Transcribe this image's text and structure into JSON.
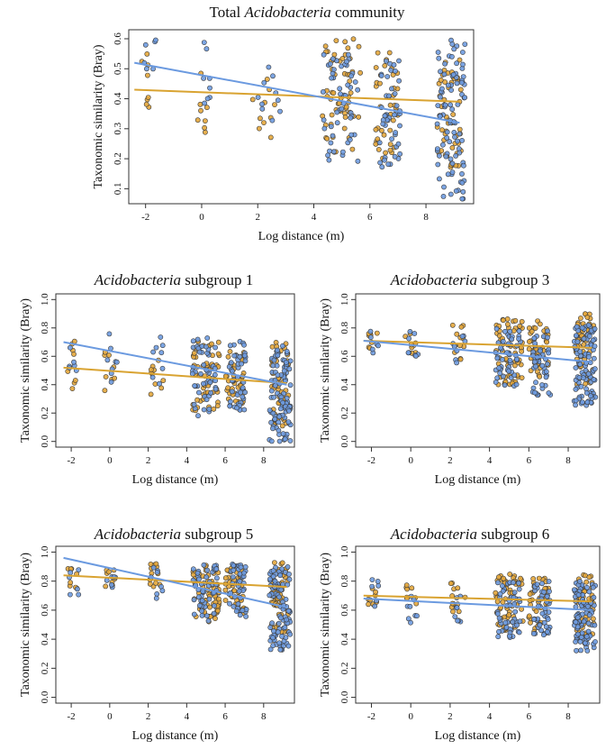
{
  "colors": {
    "orange": "#e3a63b",
    "blue": "#6e9be0",
    "orange_line": "#d9a331",
    "blue_line": "#6b9ae0",
    "point_edge": "#3a3a3a"
  },
  "chart_data": [
    {
      "type": "scatter",
      "title_italic": "Acidobacteria",
      "title_plain": "Total",
      "title_suffix": " community",
      "title_order": "plain-first",
      "xlabel": "Log distance (m)",
      "ylabel": "Taxonomic similarity (Bray)",
      "xlim": [
        -2.6,
        9.7
      ],
      "ylim": [
        0.05,
        0.63
      ],
      "xticks": [
        -2,
        0,
        2,
        4,
        6,
        8
      ],
      "yticks": [
        0.1,
        0.2,
        0.3,
        0.4,
        0.5,
        0.6
      ],
      "series": [
        {
          "name": "orange",
          "trend": {
            "x": [
              -2.4,
              9.2
            ],
            "y": [
              0.43,
              0.39
            ]
          },
          "clusters": [
            {
              "x": [
                -2.2,
                -1.8
              ],
              "y": [
                0.33,
                0.55
              ],
              "n": 8
            },
            {
              "x": [
                -0.2,
                0.2
              ],
              "y": [
                0.24,
                0.52
              ],
              "n": 8
            },
            {
              "x": [
                1.8,
                2.8
              ],
              "y": [
                0.27,
                0.5
              ],
              "n": 10
            },
            {
              "x": [
                4.3,
                5.7
              ],
              "y": [
                0.22,
                0.6
              ],
              "n": 55
            },
            {
              "x": [
                6.2,
                7.0
              ],
              "y": [
                0.2,
                0.56
              ],
              "n": 40
            },
            {
              "x": [
                8.4,
                9.3
              ],
              "y": [
                0.17,
                0.53
              ],
              "n": 50
            }
          ]
        },
        {
          "name": "blue",
          "trend": {
            "x": [
              -2.4,
              9.2
            ],
            "y": [
              0.52,
              0.32
            ]
          },
          "clusters": [
            {
              "x": [
                -2.1,
                -1.6
              ],
              "y": [
                0.43,
                0.62
              ],
              "n": 6
            },
            {
              "x": [
                -0.2,
                0.5
              ],
              "y": [
                0.38,
                0.6
              ],
              "n": 8
            },
            {
              "x": [
                2.0,
                2.8
              ],
              "y": [
                0.2,
                0.52
              ],
              "n": 10
            },
            {
              "x": [
                4.3,
                5.6
              ],
              "y": [
                0.18,
                0.55
              ],
              "n": 50
            },
            {
              "x": [
                6.3,
                7.1
              ],
              "y": [
                0.17,
                0.54
              ],
              "n": 45
            },
            {
              "x": [
                8.4,
                9.4
              ],
              "y": [
                0.06,
                0.6
              ],
              "n": 90
            }
          ]
        }
      ]
    },
    {
      "type": "scatter",
      "title_italic": "Acidobacteria",
      "title_plain": "",
      "title_suffix": " subgroup 1",
      "title_order": "italic-first",
      "xlabel": "Log distance (m)",
      "ylabel": "Taxonomic similarity (Bray)",
      "xlim": [
        -2.8,
        9.6
      ],
      "ylim": [
        -0.04,
        1.04
      ],
      "xticks": [
        -2,
        0,
        2,
        4,
        6,
        8
      ],
      "yticks": [
        0.0,
        0.2,
        0.4,
        0.6,
        0.8,
        1.0
      ],
      "series": [
        {
          "name": "orange",
          "trend": {
            "x": [
              -2.4,
              9.2
            ],
            "y": [
              0.52,
              0.41
            ]
          },
          "clusters": [
            {
              "x": [
                -2.2,
                -1.7
              ],
              "y": [
                0.36,
                0.75
              ],
              "n": 8
            },
            {
              "x": [
                -0.3,
                0.3
              ],
              "y": [
                0.35,
                0.7
              ],
              "n": 8
            },
            {
              "x": [
                2.0,
                2.8
              ],
              "y": [
                0.32,
                0.6
              ],
              "n": 10
            },
            {
              "x": [
                4.3,
                5.7
              ],
              "y": [
                0.2,
                0.72
              ],
              "n": 55
            },
            {
              "x": [
                6.0,
                7.0
              ],
              "y": [
                0.25,
                0.65
              ],
              "n": 40
            },
            {
              "x": [
                8.4,
                9.3
              ],
              "y": [
                0.1,
                0.7
              ],
              "n": 50
            }
          ]
        },
        {
          "name": "blue",
          "trend": {
            "x": [
              -2.4,
              9.2
            ],
            "y": [
              0.7,
              0.4
            ]
          },
          "clusters": [
            {
              "x": [
                -2.1,
                -1.6
              ],
              "y": [
                0.5,
                0.78
              ],
              "n": 6
            },
            {
              "x": [
                -0.2,
                0.4
              ],
              "y": [
                0.4,
                0.8
              ],
              "n": 8
            },
            {
              "x": [
                2.1,
                2.8
              ],
              "y": [
                0.4,
                0.75
              ],
              "n": 8
            },
            {
              "x": [
                4.3,
                5.6
              ],
              "y": [
                0.18,
                0.75
              ],
              "n": 50
            },
            {
              "x": [
                6.2,
                7.1
              ],
              "y": [
                0.22,
                0.72
              ],
              "n": 45
            },
            {
              "x": [
                8.3,
                9.4
              ],
              "y": [
                0.0,
                0.7
              ],
              "n": 95
            }
          ]
        }
      ]
    },
    {
      "type": "scatter",
      "title_italic": "Acidobacteria",
      "title_plain": "",
      "title_suffix": " subgroup 3",
      "title_order": "italic-first",
      "xlabel": "Log distance (m)",
      "ylabel": "Taxonomic similarity (Bray)",
      "xlim": [
        -2.8,
        9.6
      ],
      "ylim": [
        -0.04,
        1.04
      ],
      "xticks": [
        -2,
        0,
        2,
        4,
        6,
        8
      ],
      "yticks": [
        0.0,
        0.2,
        0.4,
        0.6,
        0.8,
        1.0
      ],
      "series": [
        {
          "name": "orange",
          "trend": {
            "x": [
              -2.4,
              9.2
            ],
            "y": [
              0.71,
              0.66
            ]
          },
          "clusters": [
            {
              "x": [
                -2.2,
                -1.7
              ],
              "y": [
                0.65,
                0.78
              ],
              "n": 8
            },
            {
              "x": [
                -0.3,
                0.3
              ],
              "y": [
                0.62,
                0.78
              ],
              "n": 8
            },
            {
              "x": [
                2.0,
                2.8
              ],
              "y": [
                0.55,
                0.82
              ],
              "n": 12
            },
            {
              "x": [
                4.3,
                5.7
              ],
              "y": [
                0.4,
                0.88
              ],
              "n": 60
            },
            {
              "x": [
                6.0,
                7.0
              ],
              "y": [
                0.45,
                0.85
              ],
              "n": 40
            },
            {
              "x": [
                8.4,
                9.3
              ],
              "y": [
                0.4,
                0.9
              ],
              "n": 55
            }
          ]
        },
        {
          "name": "blue",
          "trend": {
            "x": [
              -2.4,
              9.2
            ],
            "y": [
              0.71,
              0.56
            ]
          },
          "clusters": [
            {
              "x": [
                -2.1,
                -1.6
              ],
              "y": [
                0.6,
                0.8
              ],
              "n": 6
            },
            {
              "x": [
                -0.2,
                0.4
              ],
              "y": [
                0.6,
                0.78
              ],
              "n": 8
            },
            {
              "x": [
                2.1,
                2.8
              ],
              "y": [
                0.55,
                0.75
              ],
              "n": 8
            },
            {
              "x": [
                4.3,
                5.6
              ],
              "y": [
                0.38,
                0.8
              ],
              "n": 50
            },
            {
              "x": [
                6.2,
                7.1
              ],
              "y": [
                0.28,
                0.8
              ],
              "n": 45
            },
            {
              "x": [
                8.3,
                9.4
              ],
              "y": [
                0.25,
                0.82
              ],
              "n": 95
            }
          ]
        }
      ]
    },
    {
      "type": "scatter",
      "title_italic": "Acidobacteria",
      "title_plain": "",
      "title_suffix": " subgroup 5",
      "title_order": "italic-first",
      "xlabel": "Log distance (m)",
      "ylabel": "Taxonomic similarity (Bray)",
      "xlim": [
        -2.8,
        9.6
      ],
      "ylim": [
        -0.04,
        1.04
      ],
      "xticks": [
        -2,
        0,
        2,
        4,
        6,
        8
      ],
      "yticks": [
        0.0,
        0.2,
        0.4,
        0.6,
        0.8,
        1.0
      ],
      "series": [
        {
          "name": "orange",
          "trend": {
            "x": [
              -2.4,
              9.2
            ],
            "y": [
              0.84,
              0.76
            ]
          },
          "clusters": [
            {
              "x": [
                -2.2,
                -1.7
              ],
              "y": [
                0.75,
                0.92
              ],
              "n": 8
            },
            {
              "x": [
                -0.3,
                0.3
              ],
              "y": [
                0.75,
                0.88
              ],
              "n": 8
            },
            {
              "x": [
                2.0,
                2.8
              ],
              "y": [
                0.7,
                0.92
              ],
              "n": 12
            },
            {
              "x": [
                4.3,
                5.7
              ],
              "y": [
                0.52,
                0.92
              ],
              "n": 60
            },
            {
              "x": [
                6.0,
                7.0
              ],
              "y": [
                0.58,
                0.9
              ],
              "n": 40
            },
            {
              "x": [
                8.4,
                9.3
              ],
              "y": [
                0.45,
                0.93
              ],
              "n": 55
            }
          ]
        },
        {
          "name": "blue",
          "trend": {
            "x": [
              -2.4,
              9.2
            ],
            "y": [
              0.96,
              0.62
            ]
          },
          "clusters": [
            {
              "x": [
                -2.1,
                -1.6
              ],
              "y": [
                0.68,
                0.88
              ],
              "n": 6
            },
            {
              "x": [
                -0.2,
                0.4
              ],
              "y": [
                0.75,
                0.85
              ],
              "n": 6
            },
            {
              "x": [
                2.1,
                2.8
              ],
              "y": [
                0.65,
                0.9
              ],
              "n": 8
            },
            {
              "x": [
                4.3,
                5.6
              ],
              "y": [
                0.52,
                0.92
              ],
              "n": 50
            },
            {
              "x": [
                6.2,
                7.1
              ],
              "y": [
                0.55,
                0.92
              ],
              "n": 45
            },
            {
              "x": [
                8.3,
                9.4
              ],
              "y": [
                0.32,
                0.9
              ],
              "n": 95
            }
          ]
        }
      ]
    },
    {
      "type": "scatter",
      "title_italic": "Acidobacteria",
      "title_plain": "",
      "title_suffix": " subgroup 6",
      "title_order": "italic-first",
      "xlabel": "Log distance (m)",
      "ylabel": "Taxonomic similarity (Bray)",
      "xlim": [
        -2.8,
        9.6
      ],
      "ylim": [
        -0.04,
        1.04
      ],
      "xticks": [
        -2,
        0,
        2,
        4,
        6,
        8
      ],
      "yticks": [
        0.0,
        0.2,
        0.4,
        0.6,
        0.8,
        1.0
      ],
      "series": [
        {
          "name": "orange",
          "trend": {
            "x": [
              -2.4,
              9.2
            ],
            "y": [
              0.7,
              0.66
            ]
          },
          "clusters": [
            {
              "x": [
                -2.2,
                -1.7
              ],
              "y": [
                0.62,
                0.78
              ],
              "n": 8
            },
            {
              "x": [
                -0.3,
                0.3
              ],
              "y": [
                0.58,
                0.78
              ],
              "n": 8
            },
            {
              "x": [
                2.0,
                2.8
              ],
              "y": [
                0.55,
                0.8
              ],
              "n": 12
            },
            {
              "x": [
                4.3,
                5.7
              ],
              "y": [
                0.45,
                0.85
              ],
              "n": 60
            },
            {
              "x": [
                6.0,
                7.0
              ],
              "y": [
                0.45,
                0.82
              ],
              "n": 40
            },
            {
              "x": [
                8.4,
                9.3
              ],
              "y": [
                0.42,
                0.85
              ],
              "n": 55
            }
          ]
        },
        {
          "name": "blue",
          "trend": {
            "x": [
              -2.4,
              9.2
            ],
            "y": [
              0.68,
              0.6
            ]
          },
          "clusters": [
            {
              "x": [
                -2.1,
                -1.6
              ],
              "y": [
                0.62,
                0.82
              ],
              "n": 6
            },
            {
              "x": [
                -0.2,
                0.4
              ],
              "y": [
                0.48,
                0.72
              ],
              "n": 8
            },
            {
              "x": [
                2.1,
                2.8
              ],
              "y": [
                0.52,
                0.72
              ],
              "n": 8
            },
            {
              "x": [
                4.3,
                5.6
              ],
              "y": [
                0.4,
                0.8
              ],
              "n": 50
            },
            {
              "x": [
                6.2,
                7.1
              ],
              "y": [
                0.42,
                0.8
              ],
              "n": 45
            },
            {
              "x": [
                8.3,
                9.4
              ],
              "y": [
                0.32,
                0.8
              ],
              "n": 95
            }
          ]
        }
      ]
    }
  ]
}
